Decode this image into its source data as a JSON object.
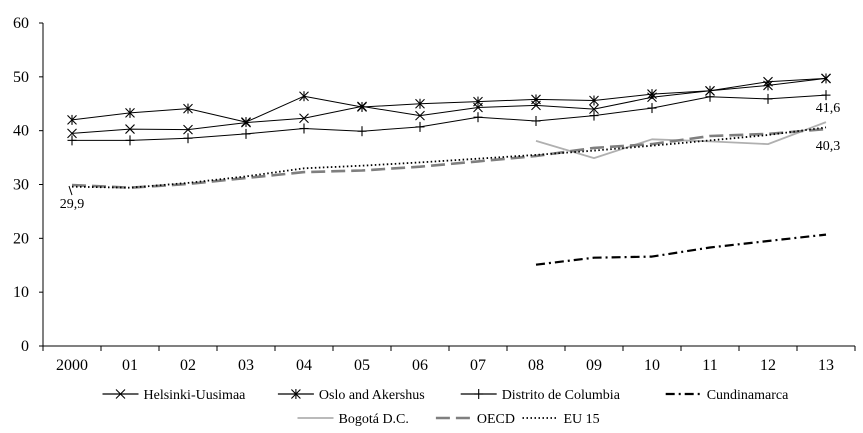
{
  "chart_data": {
    "type": "line",
    "title": "",
    "xlabel": "",
    "ylabel": "",
    "categories": [
      "2000",
      "01",
      "02",
      "03",
      "04",
      "05",
      "06",
      "07",
      "08",
      "09",
      "10",
      "11",
      "12",
      "13"
    ],
    "ylim": [
      0,
      60
    ],
    "yticks": [
      "0",
      "10",
      "20",
      "30",
      "40",
      "50",
      "60"
    ],
    "grid": false,
    "legend_position": "bottom",
    "series": [
      {
        "name": "Helsinki-Uusimaa",
        "style": "solid-x",
        "color": "#000000",
        "values": [
          39.5,
          40.3,
          40.2,
          41.5,
          42.3,
          44.5,
          42.8,
          44.3,
          44.7,
          44.0,
          46.2,
          47.4,
          49.1,
          49.7
        ]
      },
      {
        "name": "Oslo and Akershus",
        "style": "solid-star",
        "color": "#000000",
        "values": [
          42.0,
          43.3,
          44.1,
          41.6,
          46.4,
          44.4,
          45.0,
          45.4,
          45.8,
          45.6,
          46.8,
          47.4,
          48.4,
          49.7
        ]
      },
      {
        "name": "Distrito de Columbia",
        "style": "solid-plus",
        "color": "#000000",
        "values": [
          38.2,
          38.2,
          38.6,
          39.4,
          40.4,
          39.9,
          40.7,
          42.5,
          41.8,
          42.8,
          44.2,
          46.3,
          45.9,
          46.6
        ]
      },
      {
        "name": "Cundinamarca",
        "style": "dashdot",
        "color": "#000000",
        "values": [
          null,
          null,
          null,
          null,
          null,
          null,
          null,
          null,
          15.1,
          16.4,
          16.6,
          18.3,
          19.5,
          20.7
        ]
      },
      {
        "name": "Bogotá D.C.",
        "style": "solid-light",
        "color": "#b0b0b0",
        "values": [
          null,
          null,
          null,
          null,
          null,
          null,
          null,
          null,
          38.1,
          34.9,
          38.4,
          38.0,
          37.5,
          41.6
        ]
      },
      {
        "name": "OECD",
        "style": "dashed",
        "color": "#7f7f7f",
        "values": [
          29.9,
          29.4,
          30.1,
          31.2,
          32.3,
          32.6,
          33.3,
          34.3,
          35.3,
          36.8,
          37.5,
          39.0,
          39.4,
          40.3
        ]
      },
      {
        "name": "EU 15",
        "style": "dotted",
        "color": "#000000",
        "values": [
          29.6,
          29.4,
          30.3,
          31.5,
          33.0,
          33.5,
          34.1,
          34.8,
          35.5,
          36.3,
          37.2,
          38.2,
          39.2,
          40.6
        ]
      }
    ],
    "annotations": [
      {
        "text": "29,9",
        "category": "2000",
        "value": 29.9
      },
      {
        "text": "41,6",
        "category": "13",
        "value": 41.6
      },
      {
        "text": "40,3",
        "category": "13",
        "value": 40.3
      }
    ]
  }
}
